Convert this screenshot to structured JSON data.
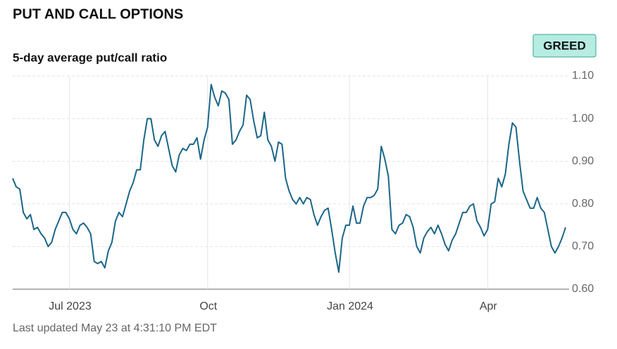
{
  "chart_data": {
    "type": "line",
    "title": "PUT AND CALL OPTIONS",
    "subtitle": "5-day average put/call ratio",
    "badge": "GREED",
    "footnote": "Last updated May 23 at 4:31:10 PM EDT",
    "color": "#1b6688",
    "grid": true,
    "ylim": [
      0.6,
      1.1
    ],
    "yticks": [
      {
        "value": 1.1,
        "label": "1.10"
      },
      {
        "value": 1.0,
        "label": "1.00"
      },
      {
        "value": 0.9,
        "label": "0.90"
      },
      {
        "value": 0.8,
        "label": "0.80"
      },
      {
        "value": 0.7,
        "label": "0.70"
      },
      {
        "value": 0.6,
        "label": "0.60"
      }
    ],
    "categories": [
      null,
      null,
      null,
      null,
      null,
      null,
      null,
      null,
      null,
      null,
      null,
      null,
      null,
      null,
      null,
      null,
      "Jul 2023",
      null,
      null,
      null,
      null,
      null,
      null,
      null,
      null,
      null,
      null,
      null,
      null,
      null,
      null,
      null,
      null,
      null,
      null,
      null,
      null,
      null,
      null,
      null,
      null,
      null,
      null,
      null,
      null,
      null,
      null,
      null,
      null,
      null,
      null,
      null,
      null,
      null,
      null,
      "Oct",
      null,
      null,
      null,
      null,
      null,
      null,
      null,
      null,
      null,
      null,
      null,
      null,
      null,
      null,
      null,
      null,
      null,
      null,
      null,
      null,
      null,
      null,
      null,
      null,
      null,
      null,
      null,
      null,
      null,
      null,
      null,
      null,
      null,
      null,
      null,
      null,
      null,
      null,
      null,
      "Jan 2024",
      null,
      null,
      null,
      null,
      null,
      null,
      null,
      null,
      null,
      null,
      null,
      null,
      null,
      null,
      null,
      null,
      null,
      null,
      null,
      null,
      null,
      null,
      null,
      null,
      null,
      null,
      null,
      null,
      null,
      null,
      null,
      null,
      null,
      null,
      null,
      null,
      null,
      null,
      "Apr",
      null,
      null,
      null,
      null,
      null,
      null,
      null,
      null,
      null,
      null,
      null,
      null,
      null,
      null,
      null,
      null,
      null,
      null,
      null,
      null,
      null,
      null
    ],
    "values": [
      0.86,
      0.84,
      0.835,
      0.78,
      0.765,
      0.775,
      0.74,
      0.745,
      0.73,
      0.72,
      0.7,
      0.71,
      0.74,
      0.76,
      0.78,
      0.78,
      0.765,
      0.74,
      0.73,
      0.75,
      0.755,
      0.745,
      0.73,
      0.665,
      0.66,
      0.665,
      0.65,
      0.69,
      0.71,
      0.76,
      0.78,
      0.77,
      0.8,
      0.83,
      0.85,
      0.88,
      0.88,
      0.95,
      1.0,
      1.0,
      0.95,
      0.935,
      0.96,
      0.97,
      0.93,
      0.89,
      0.875,
      0.915,
      0.93,
      0.925,
      0.94,
      0.94,
      0.955,
      0.905,
      0.95,
      0.98,
      1.08,
      1.05,
      1.03,
      1.065,
      1.06,
      1.045,
      0.94,
      0.95,
      0.97,
      0.985,
      1.055,
      1.045,
      0.995,
      0.955,
      0.96,
      1.015,
      0.95,
      0.935,
      0.9,
      0.945,
      0.94,
      0.86,
      0.83,
      0.81,
      0.8,
      0.815,
      0.8,
      0.815,
      0.81,
      0.775,
      0.75,
      0.77,
      0.785,
      0.79,
      0.74,
      0.685,
      0.64,
      0.72,
      0.75,
      0.75,
      0.795,
      0.755,
      0.755,
      0.795,
      0.815,
      0.815,
      0.82,
      0.835,
      0.935,
      0.905,
      0.865,
      0.74,
      0.73,
      0.75,
      0.755,
      0.775,
      0.77,
      0.745,
      0.7,
      0.685,
      0.72,
      0.735,
      0.745,
      0.73,
      0.75,
      0.73,
      0.705,
      0.69,
      0.715,
      0.73,
      0.755,
      0.78,
      0.78,
      0.795,
      0.8,
      0.76,
      0.745,
      0.725,
      0.74,
      0.8,
      0.805,
      0.86,
      0.84,
      0.87,
      0.94,
      0.99,
      0.98,
      0.9,
      0.83,
      0.81,
      0.79,
      0.79,
      0.815,
      0.79,
      0.78,
      0.74,
      0.7,
      0.685,
      0.7,
      0.72,
      0.745
    ]
  }
}
